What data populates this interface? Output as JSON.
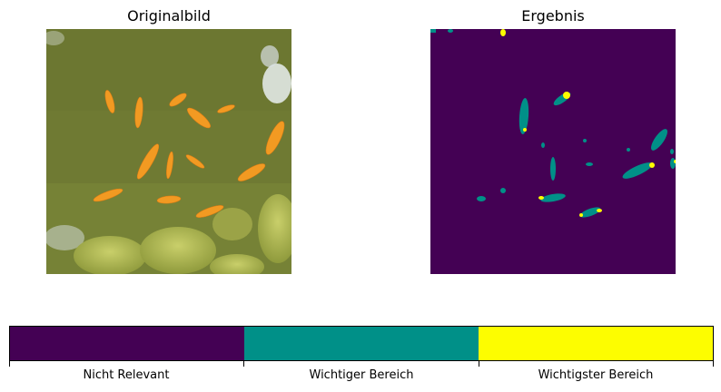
{
  "titles": {
    "left": "Originalbild",
    "right": "Ergebnis"
  },
  "colorbar": {
    "categories": [
      {
        "label": "Nicht Relevant",
        "color": "#440154"
      },
      {
        "label": "Wichtiger Bereich",
        "color": "#009088"
      },
      {
        "label": "Wichtigster Bereich",
        "color": "#fdfd00"
      }
    ]
  }
}
